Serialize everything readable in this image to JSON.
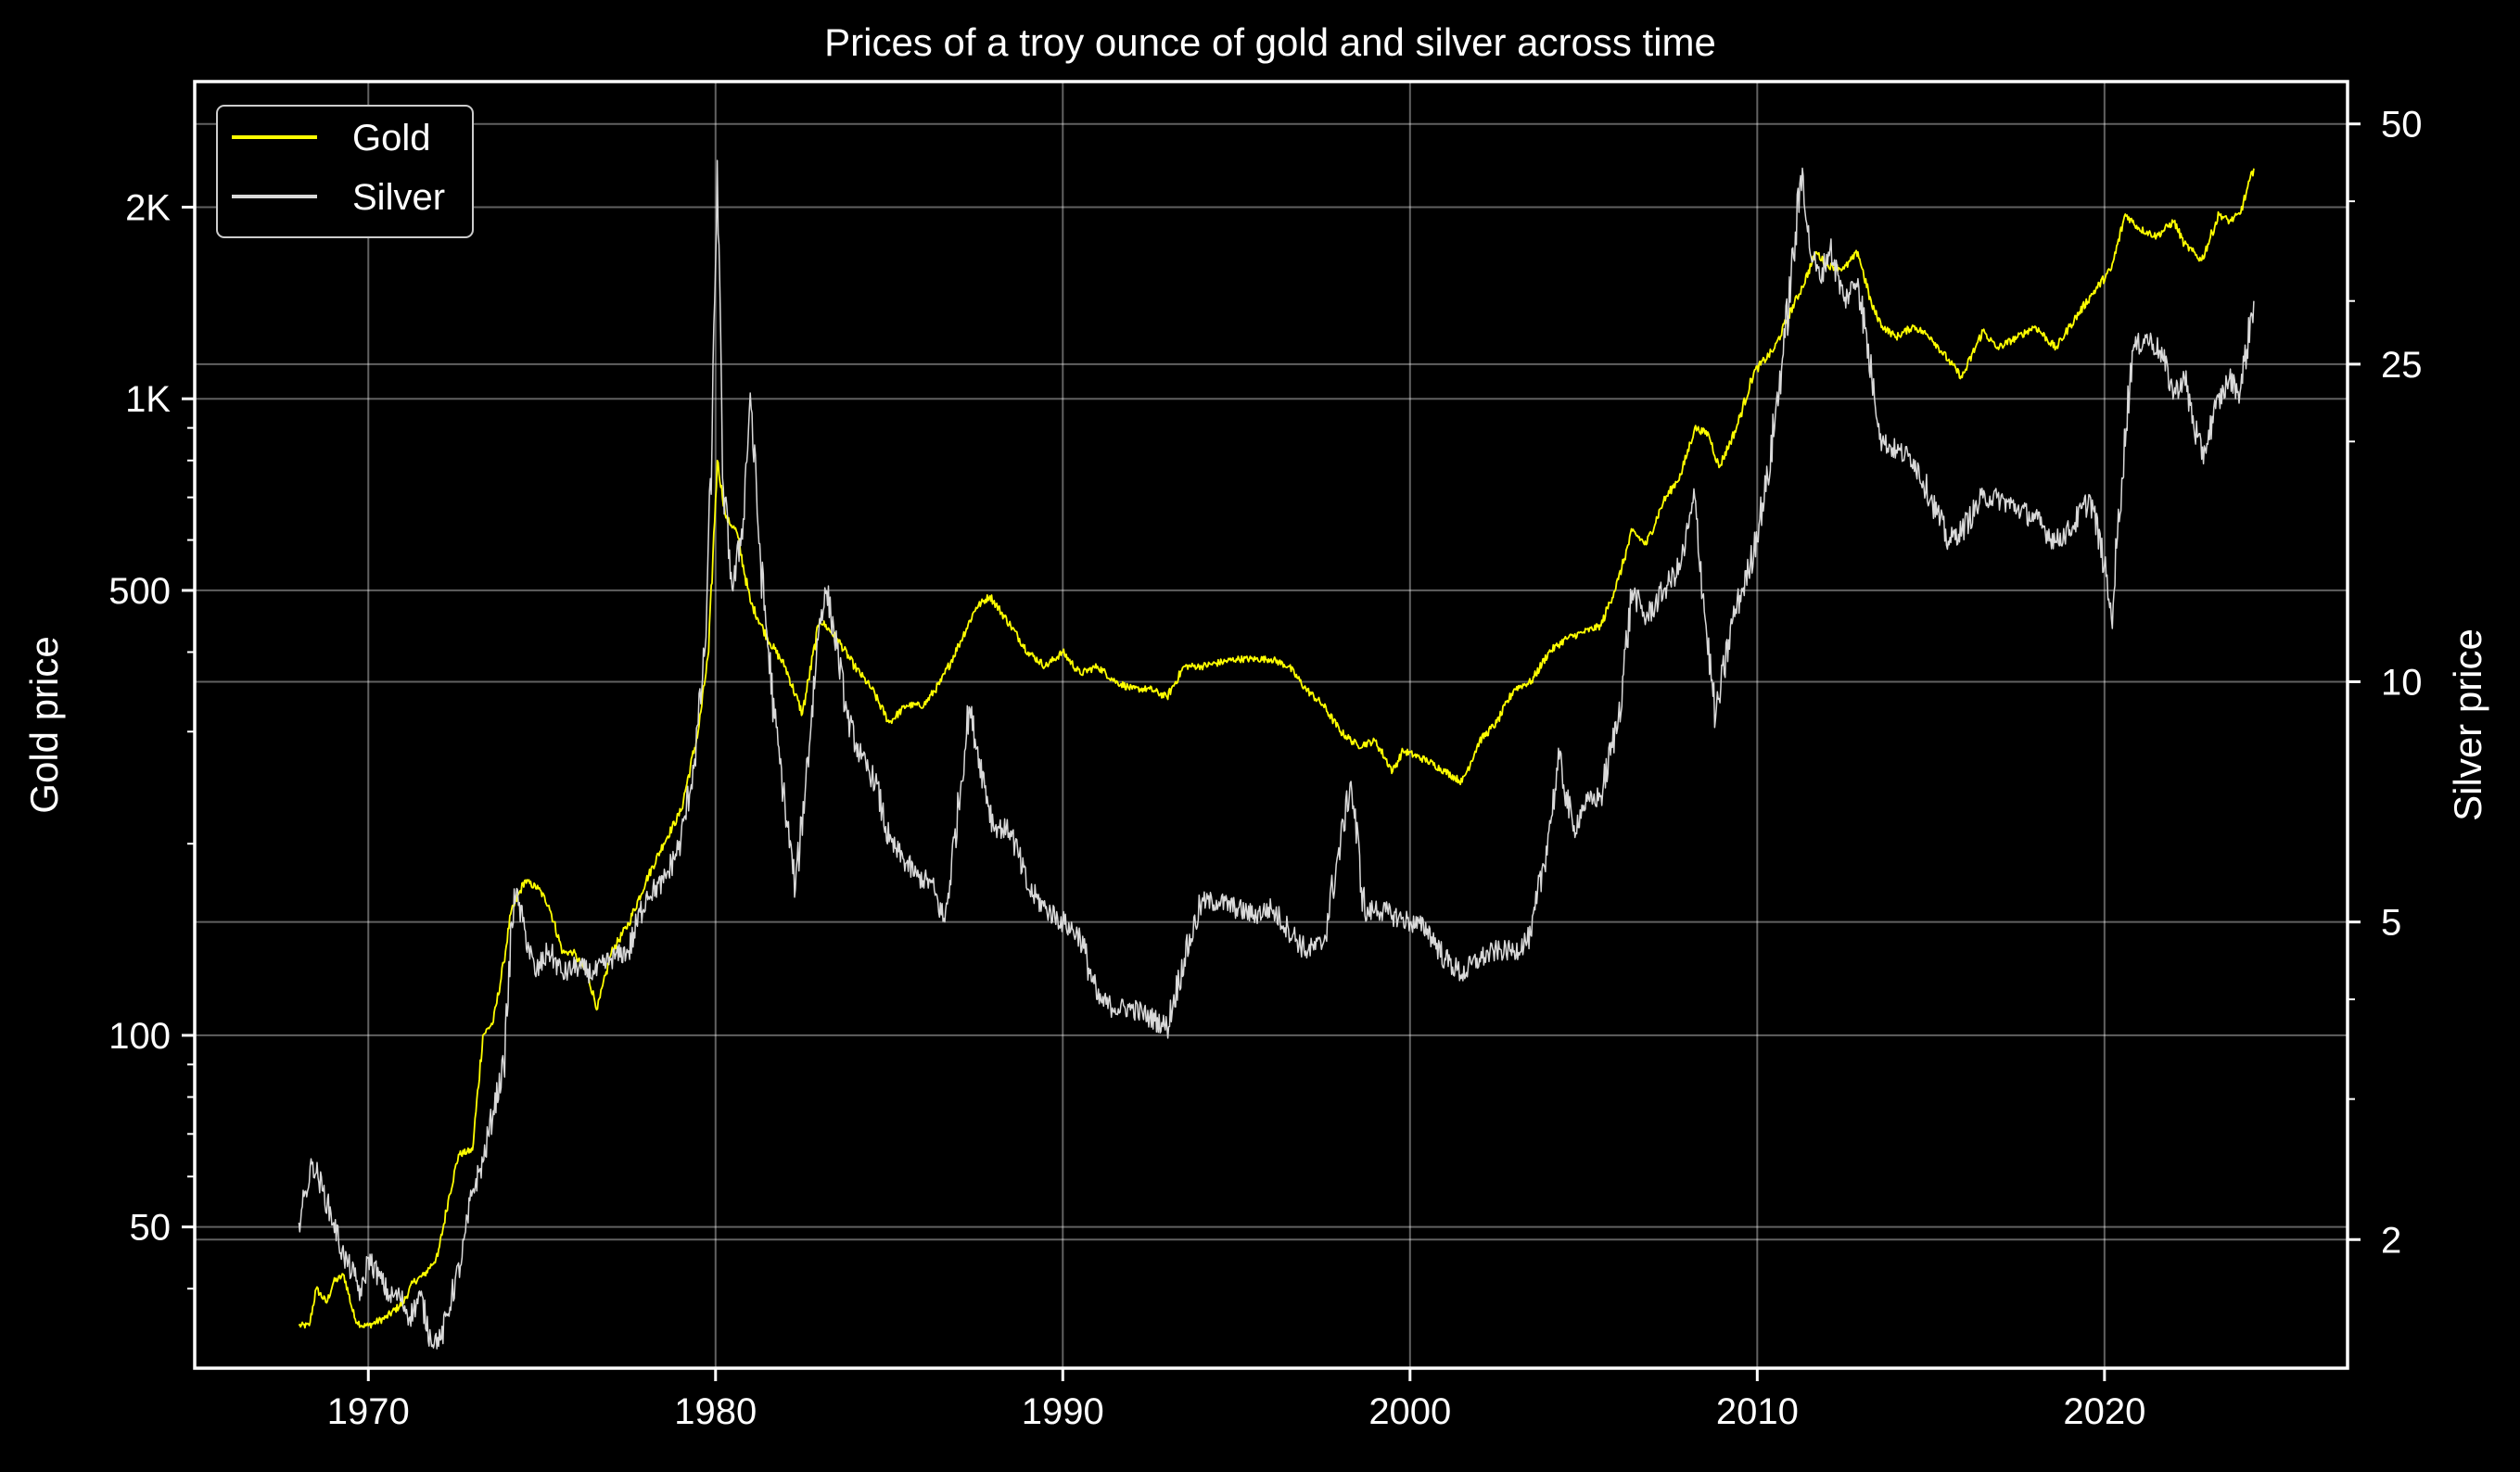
{
  "chart_data": {
    "type": "line",
    "title": "Prices of a troy ounce of gold and silver across time",
    "xlabel": "",
    "ylabel_left": "Gold price",
    "ylabel_right": "Silver price",
    "xlim": [
      1965,
      2027
    ],
    "ylim_left": [
      30,
      3150
    ],
    "ylim_right": [
      1.38,
      56.5
    ],
    "scale_left": "log",
    "scale_right": "log",
    "grid": true,
    "x_ticks": [
      1970,
      1980,
      1990,
      2000,
      2010,
      2020
    ],
    "x_tick_labels": [
      "1970",
      "1980",
      "1990",
      "2000",
      "2010",
      "2020"
    ],
    "y_left_ticks": [
      50,
      100,
      500,
      1000,
      2000
    ],
    "y_left_tick_labels": [
      "50",
      "100",
      "500",
      "1K",
      "2K"
    ],
    "y_right_ticks": [
      2,
      5,
      10,
      25,
      50
    ],
    "y_right_tick_labels": [
      "2",
      "5",
      "10",
      "25",
      "50"
    ],
    "legend": {
      "placement": "top-left",
      "entries": [
        "Gold",
        "Silver"
      ]
    },
    "series": [
      {
        "name": "Gold",
        "axis": "left",
        "color": "#ffff00",
        "x": [
          1968.0,
          1968.3,
          1968.5,
          1968.8,
          1969.0,
          1969.3,
          1969.6,
          1969.8,
          1970.0,
          1970.5,
          1971.0,
          1971.3,
          1971.6,
          1972.0,
          1972.3,
          1972.6,
          1973.0,
          1973.3,
          1973.6,
          1973.9,
          1974.1,
          1974.5,
          1974.9,
          1975.2,
          1975.6,
          1975.9,
          1976.3,
          1976.6,
          1977.0,
          1977.5,
          1978.0,
          1978.5,
          1979.0,
          1979.5,
          1979.8,
          1980.05,
          1980.3,
          1980.6,
          1981.0,
          1981.5,
          1982.0,
          1982.5,
          1983.0,
          1983.5,
          1984.0,
          1984.5,
          1985.0,
          1985.5,
          1986.0,
          1986.5,
          1987.0,
          1987.5,
          1987.9,
          1988.5,
          1989.0,
          1989.5,
          1990.0,
          1990.5,
          1991.0,
          1991.5,
          1992.0,
          1992.5,
          1993.0,
          1993.5,
          1994.0,
          1995.0,
          1996.0,
          1996.5,
          1997.0,
          1997.5,
          1998.0,
          1998.5,
          1999.0,
          1999.5,
          1999.8,
          2000.5,
          2001.0,
          2001.5,
          2002.0,
          2002.5,
          2003.0,
          2003.5,
          2004.0,
          2004.5,
          2005.0,
          2005.5,
          2006.0,
          2006.4,
          2006.8,
          2007.3,
          2007.8,
          2008.2,
          2008.6,
          2008.9,
          2009.4,
          2009.9,
          2010.5,
          2010.9,
          2011.3,
          2011.7,
          2012.0,
          2012.5,
          2012.9,
          2013.3,
          2013.6,
          2014.0,
          2014.5,
          2015.0,
          2015.5,
          2015.9,
          2016.5,
          2016.9,
          2017.5,
          2018.0,
          2018.6,
          2019.0,
          2019.6,
          2020.2,
          2020.6,
          2021.0,
          2021.5,
          2022.0,
          2022.3,
          2022.8,
          2023.3,
          2023.6,
          2023.9,
          2024.3
        ],
        "values": [
          35,
          35,
          40,
          38,
          41,
          42,
          36,
          35,
          35,
          36,
          38,
          41,
          42,
          45,
          55,
          65,
          66,
          100,
          105,
          130,
          155,
          175,
          170,
          160,
          135,
          135,
          125,
          110,
          135,
          150,
          175,
          200,
          225,
          300,
          400,
          800,
          650,
          620,
          480,
          420,
          380,
          320,
          450,
          420,
          380,
          350,
          310,
          330,
          330,
          360,
          410,
          470,
          490,
          440,
          400,
          380,
          400,
          370,
          380,
          360,
          350,
          350,
          340,
          380,
          380,
          390,
          390,
          380,
          350,
          330,
          300,
          285,
          290,
          260,
          280,
          270,
          260,
          250,
          290,
          310,
          350,
          360,
          400,
          420,
          430,
          440,
          520,
          620,
          590,
          690,
          760,
          900,
          880,
          780,
          900,
          1100,
          1200,
          1350,
          1500,
          1700,
          1620,
          1600,
          1700,
          1400,
          1300,
          1250,
          1300,
          1250,
          1150,
          1080,
          1280,
          1200,
          1250,
          1300,
          1200,
          1300,
          1450,
          1600,
          1950,
          1850,
          1800,
          1900,
          1750,
          1650,
          1950,
          1900,
          1950,
          2300
        ]
      },
      {
        "name": "Silver",
        "axis": "right",
        "color": "#d9d9d9",
        "x": [
          1968.0,
          1968.2,
          1968.4,
          1968.7,
          1969.0,
          1969.3,
          1969.6,
          1969.8,
          1970.0,
          1970.3,
          1970.6,
          1970.9,
          1971.2,
          1971.5,
          1971.8,
          1972.1,
          1972.4,
          1972.7,
          1973.0,
          1973.3,
          1973.6,
          1973.9,
          1974.2,
          1974.5,
          1974.8,
          1975.2,
          1975.6,
          1976.0,
          1976.5,
          1977.0,
          1977.5,
          1978.0,
          1978.5,
          1979.0,
          1979.4,
          1979.7,
          1979.9,
          1980.05,
          1980.2,
          1980.5,
          1980.8,
          1981.0,
          1981.3,
          1981.7,
          1982.0,
          1982.3,
          1982.6,
          1983.0,
          1983.2,
          1983.5,
          1983.8,
          1984.2,
          1984.6,
          1985.0,
          1985.4,
          1985.8,
          1986.2,
          1986.6,
          1987.0,
          1987.3,
          1987.6,
          1988.0,
          1988.5,
          1989.0,
          1989.5,
          1990.0,
          1990.5,
          1991.0,
          1991.5,
          1992.0,
          1992.5,
          1993.0,
          1993.5,
          1994.0,
          1994.5,
          1995.0,
          1995.5,
          1996.0,
          1996.5,
          1997.0,
          1997.5,
          1998.0,
          1998.3,
          1998.7,
          1999.0,
          1999.5,
          2000.0,
          2000.5,
          2001.0,
          2001.5,
          2002.0,
          2002.5,
          2003.0,
          2003.5,
          2004.0,
          2004.3,
          2004.7,
          2005.0,
          2005.5,
          2006.0,
          2006.4,
          2006.8,
          2007.3,
          2007.8,
          2008.2,
          2008.5,
          2008.8,
          2009.3,
          2009.8,
          2010.3,
          2010.8,
          2011.3,
          2011.5,
          2011.8,
          2012.1,
          2012.5,
          2012.9,
          2013.3,
          2013.6,
          2014.0,
          2014.5,
          2015.0,
          2015.5,
          2015.9,
          2016.5,
          2016.9,
          2017.5,
          2018.0,
          2018.6,
          2019.0,
          2019.6,
          2020.0,
          2020.2,
          2020.5,
          2020.8,
          2021.2,
          2021.6,
          2022.0,
          2022.3,
          2022.8,
          2023.2,
          2023.6,
          2023.9,
          2024.3
        ],
        "values": [
          2.1,
          2.3,
          2.5,
          2.3,
          2.1,
          1.9,
          1.8,
          1.7,
          1.9,
          1.8,
          1.7,
          1.7,
          1.6,
          1.7,
          1.5,
          1.5,
          1.7,
          1.9,
          2.3,
          2.5,
          2.9,
          3.3,
          5.5,
          4.9,
          4.3,
          4.6,
          4.3,
          4.4,
          4.3,
          4.5,
          4.6,
          5.4,
          5.6,
          6.3,
          8.0,
          11.0,
          20.0,
          45.0,
          18.0,
          13.0,
          16.0,
          23.0,
          14.0,
          9.0,
          7.0,
          5.5,
          7.5,
          12.0,
          13.0,
          11.0,
          9.0,
          8.0,
          7.5,
          6.3,
          6.0,
          5.7,
          5.6,
          5.0,
          7.0,
          9.3,
          8.0,
          6.6,
          6.5,
          5.5,
          5.2,
          5.0,
          4.8,
          4.0,
          3.9,
          3.9,
          3.8,
          3.7,
          4.5,
          5.3,
          5.3,
          5.2,
          5.1,
          5.2,
          4.9,
          4.6,
          4.7,
          6.3,
          7.5,
          5.1,
          5.2,
          5.1,
          5.0,
          4.9,
          4.5,
          4.3,
          4.5,
          4.6,
          4.6,
          4.8,
          6.5,
          8.0,
          6.5,
          7.0,
          7.2,
          9.0,
          13.0,
          12.0,
          13.0,
          14.0,
          17.0,
          12.0,
          9.0,
          12.0,
          14.0,
          18.0,
          27.0,
          44.0,
          35.0,
          32.0,
          35.0,
          30.0,
          32.0,
          24.0,
          20.0,
          19.5,
          19.0,
          17.0,
          15.0,
          15.5,
          17.0,
          17.0,
          16.5,
          16.0,
          15.0,
          15.5,
          17.0,
          14.0,
          12.0,
          18.0,
          26.0,
          27.0,
          26.0,
          23.0,
          24.0,
          19.0,
          22.0,
          24.0,
          23.0,
          30.0
        ]
      }
    ]
  }
}
